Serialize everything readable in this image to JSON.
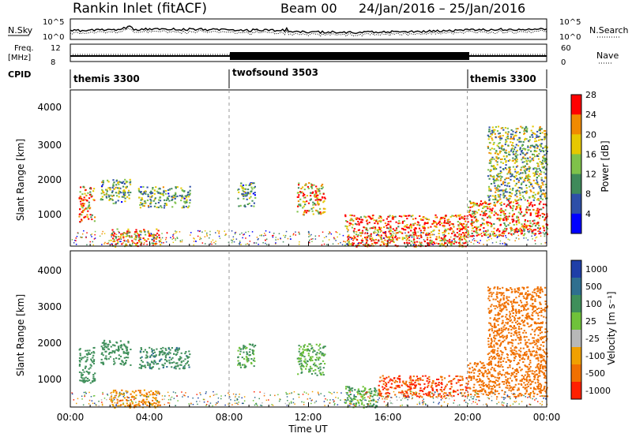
{
  "header": {
    "site": "Rankin Inlet (fitACF)",
    "beam": "Beam 00",
    "dates": "24/Jan/2016 – 25/Jan/2016"
  },
  "noise_panel": {
    "left_label": "N.Sky",
    "right_label": "N.Search",
    "left_ticks": [
      "10^5",
      "10^0"
    ],
    "right_ticks": [
      "10^5",
      "10^0"
    ]
  },
  "freq_panel": {
    "left_label_1": "Freq.",
    "left_label_2": "[MHz]",
    "right_label": "Nave",
    "left_ticks": [
      "12",
      "8"
    ],
    "right_ticks": [
      "60",
      "0"
    ]
  },
  "cpid": {
    "label": "CPID",
    "segments": [
      {
        "name": "themis 3300",
        "start_h": 0,
        "end_h": 8
      },
      {
        "name": "twofsound 3503",
        "start_h": 8,
        "end_h": 20
      },
      {
        "name": "themis 3300",
        "start_h": 20,
        "end_h": 24
      }
    ]
  },
  "x_axis": {
    "ticks": [
      "00:00",
      "04:00",
      "08:00",
      "12:00",
      "16:00",
      "20:00",
      "00:00"
    ],
    "label": "Time UT"
  },
  "power_panel": {
    "y_label": "Slant Range [km]",
    "y_ticks": [
      "1000",
      "2000",
      "3000",
      "4000"
    ],
    "cbar_label": "Power [dB]",
    "cbar_ticks": [
      "4",
      "8",
      "12",
      "16",
      "20",
      "24",
      "28"
    ],
    "cbar_colors": [
      "#0000ff",
      "#2e4fa8",
      "#3f8a5a",
      "#7fc24a",
      "#e6c800",
      "#f08a00",
      "#ff0000"
    ]
  },
  "velocity_panel": {
    "y_label": "Slant Range [km]",
    "y_ticks": [
      "1000",
      "2000",
      "3000",
      "4000"
    ],
    "cbar_label": "Velocity [m s⁻¹]",
    "cbar_ticks": [
      "1000",
      "500",
      "100",
      "25",
      "-25",
      "-100",
      "-500",
      "-1000"
    ],
    "cbar_colors": [
      "#1f3fa8",
      "#2f6f8f",
      "#3f8f5a",
      "#6fc23a",
      "#b8b8b8",
      "#f0a000",
      "#f07000",
      "#ff2000"
    ]
  },
  "chart_data": [
    {
      "type": "heatmap",
      "title": "Power",
      "xlabel": "Time UT",
      "ylabel": "Slant Range [km]",
      "xlim": [
        0,
        24
      ],
      "ylim": [
        200,
        4600
      ],
      "colorbar": {
        "label": "Power [dB]",
        "range": [
          0,
          32
        ]
      },
      "regions": [
        {
          "t0": 0.4,
          "t1": 1.2,
          "r0": 900,
          "r1": 1900,
          "value": 24
        },
        {
          "t0": 1.5,
          "t1": 3.0,
          "r0": 1400,
          "r1": 2100,
          "value": 14
        },
        {
          "t0": 2.0,
          "t1": 4.5,
          "r0": 200,
          "r1": 700,
          "value": 24
        },
        {
          "t0": 3.4,
          "t1": 6.0,
          "r0": 1300,
          "r1": 1900,
          "value": 14
        },
        {
          "t0": 8.4,
          "t1": 9.3,
          "r0": 1300,
          "r1": 2000,
          "value": 12
        },
        {
          "t0": 11.4,
          "t1": 12.8,
          "r0": 1100,
          "r1": 2000,
          "value": 22
        },
        {
          "t0": 13.8,
          "t1": 20.0,
          "r0": 200,
          "r1": 1100,
          "value": 28
        },
        {
          "t0": 20.0,
          "t1": 24.0,
          "r0": 500,
          "r1": 1500,
          "value": 26
        },
        {
          "t0": 21.0,
          "t1": 24.0,
          "r0": 1500,
          "r1": 3600,
          "value": 16
        }
      ]
    },
    {
      "type": "heatmap",
      "title": "Velocity",
      "xlabel": "Time UT",
      "ylabel": "Slant Range [km]",
      "xlim": [
        0,
        24
      ],
      "ylim": [
        200,
        4600
      ],
      "colorbar": {
        "label": "Velocity [m s⁻¹]",
        "range": [
          -1000,
          1000
        ]
      },
      "regions": [
        {
          "t0": 0.4,
          "t1": 1.2,
          "r0": 900,
          "r1": 1900,
          "value": 300
        },
        {
          "t0": 1.5,
          "t1": 3.0,
          "r0": 1400,
          "r1": 2100,
          "value": 200
        },
        {
          "t0": 2.0,
          "t1": 4.5,
          "r0": 200,
          "r1": 700,
          "value": -100
        },
        {
          "t0": 3.4,
          "t1": 6.0,
          "r0": 1300,
          "r1": 1900,
          "value": 400
        },
        {
          "t0": 8.4,
          "t1": 9.3,
          "r0": 1300,
          "r1": 2000,
          "value": 100
        },
        {
          "t0": 11.4,
          "t1": 12.8,
          "r0": 1100,
          "r1": 2000,
          "value": 100
        },
        {
          "t0": 13.8,
          "t1": 15.5,
          "r0": 200,
          "r1": 800,
          "value": 100
        },
        {
          "t0": 15.5,
          "t1": 20.0,
          "r0": 500,
          "r1": 1100,
          "value": -500
        },
        {
          "t0": 20.0,
          "t1": 24.0,
          "r0": 500,
          "r1": 1500,
          "value": -300
        },
        {
          "t0": 21.0,
          "t1": 24.0,
          "r0": 1500,
          "r1": 3600,
          "value": -200
        }
      ]
    }
  ]
}
